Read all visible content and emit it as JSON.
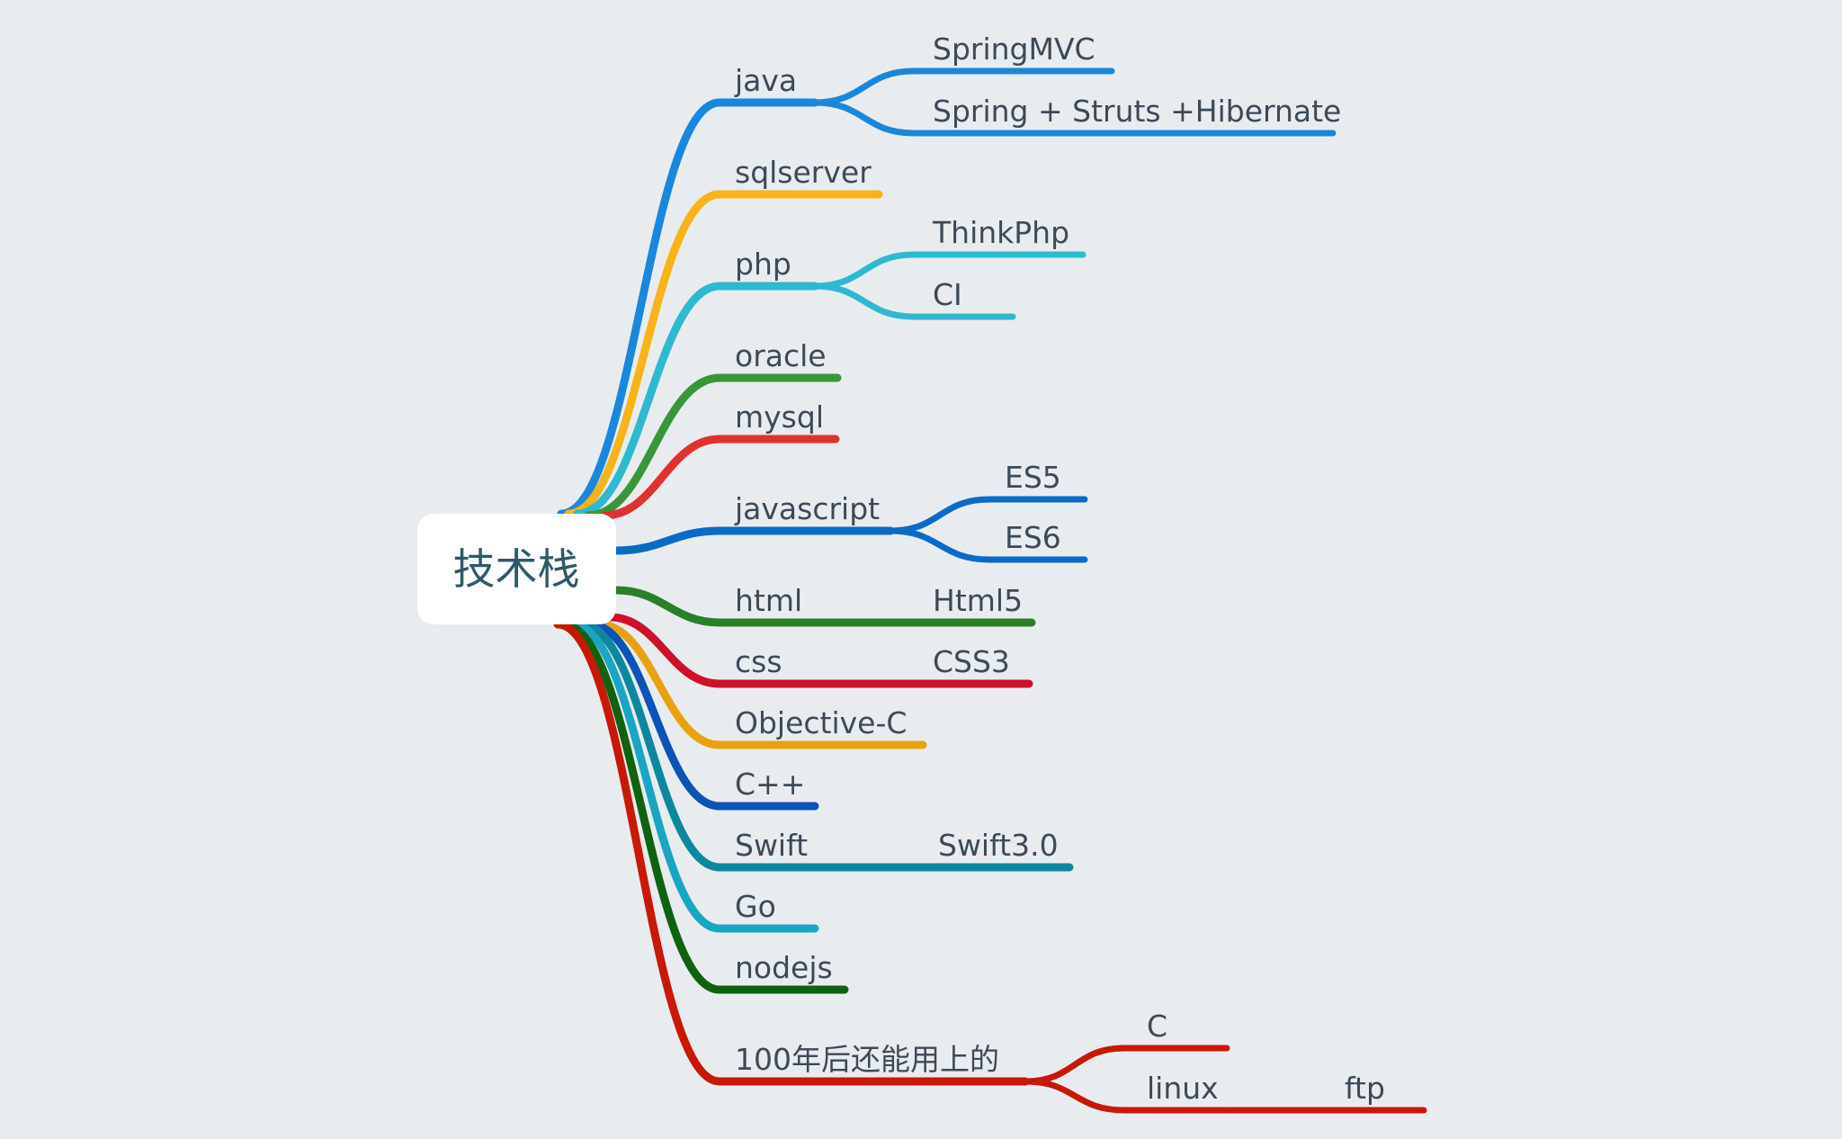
{
  "root": {
    "label": "技术栈"
  },
  "branches": [
    {
      "id": "java",
      "label": "java",
      "color": "#1a87dc",
      "children": [
        {
          "id": "springmvc",
          "label": "SpringMVC"
        },
        {
          "id": "ssh",
          "label": "Spring + Struts +Hibernate"
        }
      ]
    },
    {
      "id": "sqlserver",
      "label": "sqlserver",
      "color": "#f6b416",
      "children": []
    },
    {
      "id": "php",
      "label": "php",
      "color": "#2fb9cf",
      "children": [
        {
          "id": "thinkphp",
          "label": "ThinkPhp"
        },
        {
          "id": "ci",
          "label": "CI"
        }
      ]
    },
    {
      "id": "oracle",
      "label": "oracle",
      "color": "#3a963a",
      "children": []
    },
    {
      "id": "mysql",
      "label": "mysql",
      "color": "#e03131",
      "children": []
    },
    {
      "id": "javascript",
      "label": "javascript",
      "color": "#0b6ac8",
      "children": [
        {
          "id": "es5",
          "label": "ES5"
        },
        {
          "id": "es6",
          "label": "ES6"
        }
      ]
    },
    {
      "id": "html",
      "label": "html",
      "color": "#2a7f2a",
      "children": [
        {
          "id": "html5",
          "label": "Html5"
        }
      ]
    },
    {
      "id": "css",
      "label": "css",
      "color": "#d0102a",
      "children": [
        {
          "id": "css3",
          "label": "CSS3"
        }
      ]
    },
    {
      "id": "objc",
      "label": "Objective-C",
      "color": "#e8a20f",
      "children": []
    },
    {
      "id": "cpp",
      "label": "C++",
      "color": "#0d53b6",
      "children": []
    },
    {
      "id": "swift",
      "label": "Swift",
      "color": "#0d879e",
      "children": [
        {
          "id": "swift3",
          "label": "Swift3.0"
        }
      ]
    },
    {
      "id": "go",
      "label": "Go",
      "color": "#1aa6c2",
      "children": []
    },
    {
      "id": "nodejs",
      "label": "nodejs",
      "color": "#0f620f",
      "children": []
    },
    {
      "id": "future",
      "label": "100年后还能用上的",
      "color": "#c81808",
      "children": [
        {
          "id": "c",
          "label": "C"
        },
        {
          "id": "linux",
          "label": "linux",
          "children": [
            {
              "id": "ftp",
              "label": "ftp"
            }
          ]
        }
      ]
    }
  ]
}
